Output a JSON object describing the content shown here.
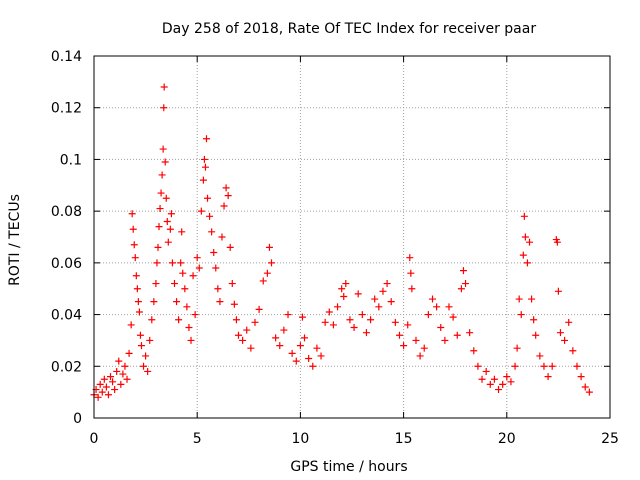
{
  "chart_data": {
    "type": "scatter",
    "title": "Day 258 of 2018, Rate Of TEC Index for receiver paar",
    "xlabel": "GPS time / hours",
    "ylabel": "ROTI / TECUs",
    "xlim": [
      0,
      25
    ],
    "ylim": [
      0,
      0.14
    ],
    "xticks": [
      0,
      5,
      10,
      15,
      20,
      25
    ],
    "yticks": [
      0,
      0.02,
      0.04,
      0.06,
      0.08,
      0.1,
      0.12,
      0.14
    ],
    "xtick_labels": [
      "0",
      "5",
      "10",
      "15",
      "20",
      "25"
    ],
    "ytick_labels": [
      "0",
      "0.02",
      "0.04",
      "0.06",
      "0.08",
      "0.1",
      "0.12",
      "0.14"
    ],
    "grid": true,
    "marker": "+",
    "colors": {
      "points": "#ff0000",
      "axes": "#000000",
      "grid": "#a0a0a0"
    },
    "points": [
      [
        0.0,
        0.009
      ],
      [
        0.1,
        0.011
      ],
      [
        0.2,
        0.008
      ],
      [
        0.3,
        0.013
      ],
      [
        0.4,
        0.01
      ],
      [
        0.5,
        0.015
      ],
      [
        0.6,
        0.012
      ],
      [
        0.7,
        0.009
      ],
      [
        0.8,
        0.016
      ],
      [
        0.9,
        0.014
      ],
      [
        1.0,
        0.011
      ],
      [
        1.1,
        0.018
      ],
      [
        1.2,
        0.022
      ],
      [
        1.3,
        0.013
      ],
      [
        1.4,
        0.017
      ],
      [
        1.5,
        0.02
      ],
      [
        1.6,
        0.015
      ],
      [
        1.7,
        0.025
      ],
      [
        1.8,
        0.036
      ],
      [
        1.85,
        0.079
      ],
      [
        1.9,
        0.073
      ],
      [
        1.95,
        0.067
      ],
      [
        2.0,
        0.062
      ],
      [
        2.05,
        0.055
      ],
      [
        2.1,
        0.05
      ],
      [
        2.15,
        0.045
      ],
      [
        2.2,
        0.041
      ],
      [
        2.25,
        0.032
      ],
      [
        2.3,
        0.028
      ],
      [
        2.4,
        0.02
      ],
      [
        2.5,
        0.024
      ],
      [
        2.6,
        0.018
      ],
      [
        2.7,
        0.03
      ],
      [
        2.8,
        0.038
      ],
      [
        2.9,
        0.045
      ],
      [
        3.0,
        0.052
      ],
      [
        3.05,
        0.06
      ],
      [
        3.1,
        0.066
      ],
      [
        3.15,
        0.074
      ],
      [
        3.2,
        0.081
      ],
      [
        3.25,
        0.087
      ],
      [
        3.3,
        0.094
      ],
      [
        3.35,
        0.104
      ],
      [
        3.38,
        0.12
      ],
      [
        3.4,
        0.128
      ],
      [
        3.45,
        0.099
      ],
      [
        3.5,
        0.085
      ],
      [
        3.55,
        0.076
      ],
      [
        3.6,
        0.068
      ],
      [
        3.7,
        0.073
      ],
      [
        3.75,
        0.079
      ],
      [
        3.8,
        0.06
      ],
      [
        3.9,
        0.052
      ],
      [
        4.0,
        0.045
      ],
      [
        4.1,
        0.038
      ],
      [
        4.2,
        0.06
      ],
      [
        4.25,
        0.072
      ],
      [
        4.3,
        0.056
      ],
      [
        4.4,
        0.05
      ],
      [
        4.5,
        0.043
      ],
      [
        4.6,
        0.035
      ],
      [
        4.7,
        0.03
      ],
      [
        4.8,
        0.055
      ],
      [
        4.9,
        0.04
      ],
      [
        5.0,
        0.062
      ],
      [
        5.1,
        0.058
      ],
      [
        5.2,
        0.08
      ],
      [
        5.3,
        0.092
      ],
      [
        5.35,
        0.1
      ],
      [
        5.4,
        0.097
      ],
      [
        5.45,
        0.108
      ],
      [
        5.5,
        0.085
      ],
      [
        5.6,
        0.078
      ],
      [
        5.7,
        0.072
      ],
      [
        5.8,
        0.064
      ],
      [
        5.9,
        0.058
      ],
      [
        6.0,
        0.05
      ],
      [
        6.1,
        0.045
      ],
      [
        6.2,
        0.07
      ],
      [
        6.3,
        0.082
      ],
      [
        6.4,
        0.089
      ],
      [
        6.5,
        0.086
      ],
      [
        6.6,
        0.066
      ],
      [
        6.7,
        0.052
      ],
      [
        6.8,
        0.044
      ],
      [
        6.9,
        0.038
      ],
      [
        7.0,
        0.032
      ],
      [
        7.2,
        0.03
      ],
      [
        7.4,
        0.034
      ],
      [
        7.6,
        0.027
      ],
      [
        7.8,
        0.037
      ],
      [
        8.0,
        0.042
      ],
      [
        8.2,
        0.053
      ],
      [
        8.4,
        0.056
      ],
      [
        8.5,
        0.066
      ],
      [
        8.6,
        0.06
      ],
      [
        8.8,
        0.031
      ],
      [
        9.0,
        0.028
      ],
      [
        9.2,
        0.034
      ],
      [
        9.4,
        0.04
      ],
      [
        9.6,
        0.025
      ],
      [
        9.8,
        0.022
      ],
      [
        10.0,
        0.028
      ],
      [
        10.1,
        0.039
      ],
      [
        10.2,
        0.031
      ],
      [
        10.4,
        0.023
      ],
      [
        10.6,
        0.02
      ],
      [
        10.8,
        0.027
      ],
      [
        11.0,
        0.024
      ],
      [
        11.2,
        0.037
      ],
      [
        11.4,
        0.041
      ],
      [
        11.6,
        0.036
      ],
      [
        11.8,
        0.043
      ],
      [
        12.0,
        0.05
      ],
      [
        12.1,
        0.047
      ],
      [
        12.2,
        0.052
      ],
      [
        12.4,
        0.038
      ],
      [
        12.6,
        0.035
      ],
      [
        12.8,
        0.048
      ],
      [
        13.0,
        0.04
      ],
      [
        13.2,
        0.033
      ],
      [
        13.4,
        0.038
      ],
      [
        13.6,
        0.046
      ],
      [
        13.8,
        0.043
      ],
      [
        14.0,
        0.049
      ],
      [
        14.2,
        0.052
      ],
      [
        14.4,
        0.045
      ],
      [
        14.6,
        0.037
      ],
      [
        14.8,
        0.032
      ],
      [
        15.0,
        0.028
      ],
      [
        15.2,
        0.036
      ],
      [
        15.3,
        0.062
      ],
      [
        15.35,
        0.056
      ],
      [
        15.4,
        0.05
      ],
      [
        15.6,
        0.03
      ],
      [
        15.8,
        0.024
      ],
      [
        16.0,
        0.027
      ],
      [
        16.2,
        0.04
      ],
      [
        16.4,
        0.046
      ],
      [
        16.6,
        0.043
      ],
      [
        16.8,
        0.035
      ],
      [
        17.0,
        0.03
      ],
      [
        17.2,
        0.043
      ],
      [
        17.4,
        0.039
      ],
      [
        17.6,
        0.032
      ],
      [
        17.8,
        0.05
      ],
      [
        17.9,
        0.057
      ],
      [
        18.0,
        0.052
      ],
      [
        18.2,
        0.033
      ],
      [
        18.4,
        0.026
      ],
      [
        18.6,
        0.02
      ],
      [
        18.8,
        0.015
      ],
      [
        19.0,
        0.018
      ],
      [
        19.2,
        0.013
      ],
      [
        19.4,
        0.015
      ],
      [
        19.6,
        0.011
      ],
      [
        19.8,
        0.013
      ],
      [
        20.0,
        0.016
      ],
      [
        20.2,
        0.014
      ],
      [
        20.4,
        0.02
      ],
      [
        20.5,
        0.027
      ],
      [
        20.6,
        0.046
      ],
      [
        20.7,
        0.04
      ],
      [
        20.8,
        0.063
      ],
      [
        20.85,
        0.078
      ],
      [
        20.9,
        0.07
      ],
      [
        21.0,
        0.06
      ],
      [
        21.1,
        0.068
      ],
      [
        21.2,
        0.046
      ],
      [
        21.3,
        0.038
      ],
      [
        21.4,
        0.032
      ],
      [
        21.6,
        0.024
      ],
      [
        21.8,
        0.02
      ],
      [
        22.0,
        0.016
      ],
      [
        22.2,
        0.02
      ],
      [
        22.4,
        0.069
      ],
      [
        22.45,
        0.068
      ],
      [
        22.5,
        0.049
      ],
      [
        22.6,
        0.033
      ],
      [
        22.8,
        0.03
      ],
      [
        23.0,
        0.037
      ],
      [
        23.2,
        0.026
      ],
      [
        23.4,
        0.02
      ],
      [
        23.6,
        0.016
      ],
      [
        23.8,
        0.012
      ],
      [
        24.0,
        0.01
      ]
    ]
  }
}
